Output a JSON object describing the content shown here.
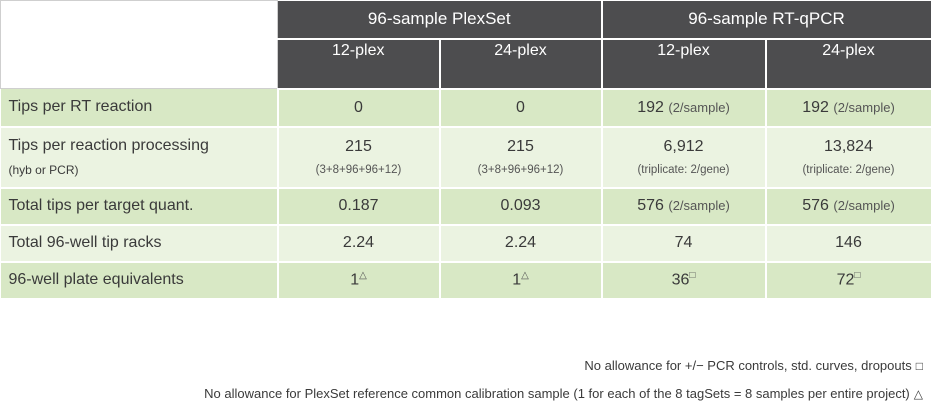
{
  "header": {
    "groups": [
      "96-sample PlexSet",
      "96-sample RT-qPCR"
    ],
    "subgroups": [
      "12-plex",
      "24-plex",
      "12-plex",
      "24-plex"
    ]
  },
  "rows": [
    {
      "label": "Tips per RT reaction",
      "sublabel": "",
      "cells": [
        {
          "value": "0",
          "note": ""
        },
        {
          "value": "0",
          "note": ""
        },
        {
          "value": "192",
          "note": "(2/sample)"
        },
        {
          "value": "192",
          "note": "(2/sample)"
        }
      ]
    },
    {
      "label": "Tips per reaction processing",
      "sublabel": "(hyb or PCR)",
      "cells": [
        {
          "value": "215",
          "note": "(3+8+96+96+12)"
        },
        {
          "value": "215",
          "note": "(3+8+96+96+12)"
        },
        {
          "value": "6,912",
          "note": "(triplicate: 2/gene)"
        },
        {
          "value": "13,824",
          "note": "(triplicate: 2/gene)"
        }
      ]
    },
    {
      "label": "Total tips per target quant.",
      "sublabel": "",
      "cells": [
        {
          "value": "0.187",
          "note": ""
        },
        {
          "value": "0.093",
          "note": ""
        },
        {
          "value": "576",
          "note": "(2/sample)"
        },
        {
          "value": "576",
          "note": "(2/sample)"
        }
      ]
    },
    {
      "label": "Total 96-well tip racks",
      "sublabel": "",
      "cells": [
        {
          "value": "2.24",
          "note": ""
        },
        {
          "value": "2.24",
          "note": ""
        },
        {
          "value": "74",
          "note": ""
        },
        {
          "value": "146",
          "note": ""
        }
      ]
    },
    {
      "label": "96-well plate equivalents",
      "sublabel": "",
      "cells": [
        {
          "value": "1",
          "note": "△"
        },
        {
          "value": "1",
          "note": "△"
        },
        {
          "value": "36",
          "note": "□"
        },
        {
          "value": "72",
          "note": "□"
        }
      ]
    }
  ],
  "footnotes": {
    "square_text": "No allowance for +/− PCR controls, std. curves, dropouts",
    "square_symbol": "□",
    "triangle_text": "No allowance for PlexSet reference common calibration sample (1 for each of the 8 tagSets = 8 samples per entire project)",
    "triangle_symbol": "△"
  },
  "colors": {
    "header_bg": "#4d4d4f",
    "row_dark": "#d8e8c5",
    "row_light": "#ebf3e1"
  }
}
